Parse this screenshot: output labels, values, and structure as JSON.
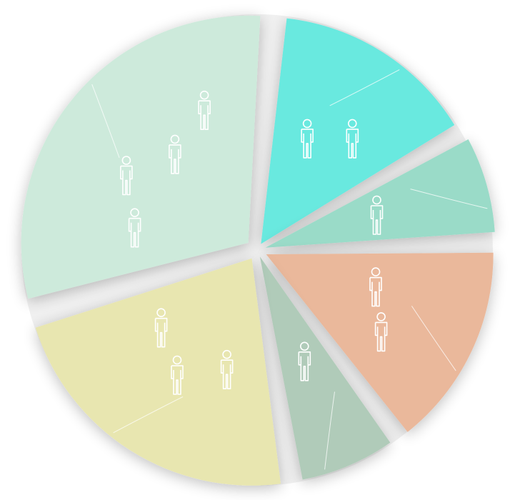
{
  "chart_data": {
    "type": "pie",
    "title": "",
    "legend": "none",
    "slices": [
      {
        "value": 4,
        "color": "#cdeadb",
        "icon": "person-icon"
      },
      {
        "value": 2,
        "color": "#69e9df",
        "icon": "person-icon"
      },
      {
        "value": 1,
        "color": "#9adbc8",
        "icon": "person-icon"
      },
      {
        "value": 2,
        "color": "#eab89b",
        "icon": "person-icon"
      },
      {
        "value": 1,
        "color": "#b0cbb9",
        "icon": "person-icon"
      },
      {
        "value": 3,
        "color": "#e8e6b0",
        "icon": "person-icon"
      }
    ]
  }
}
